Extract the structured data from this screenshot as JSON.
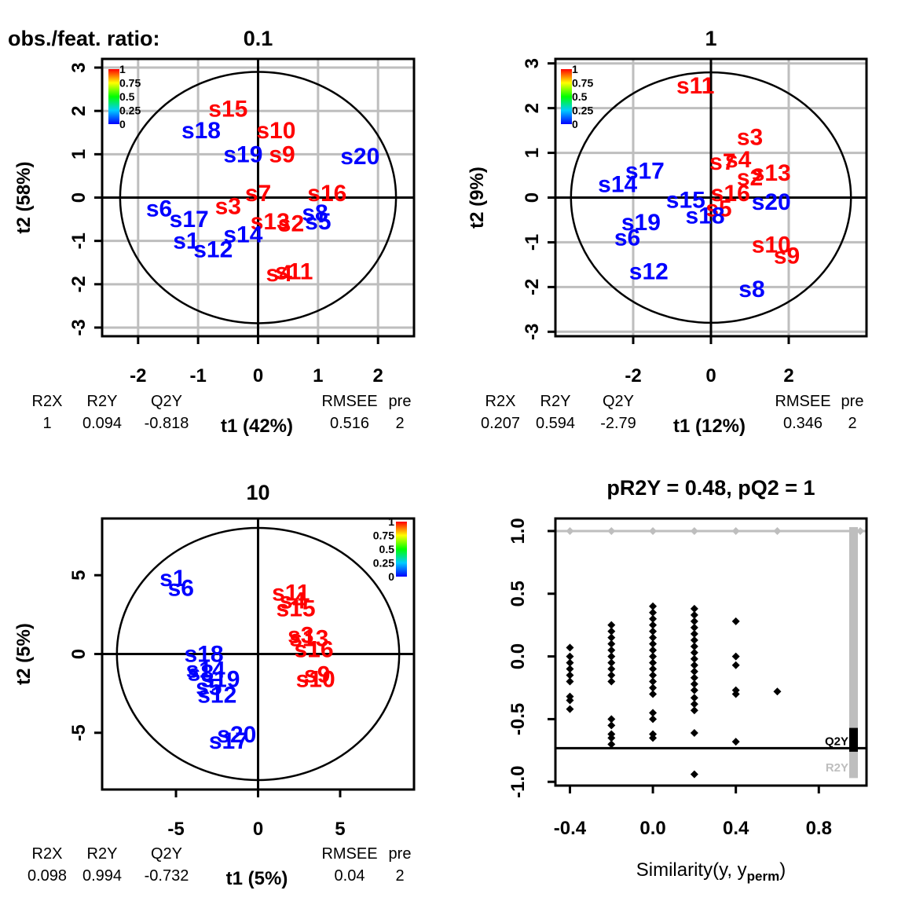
{
  "figure_label": "obs./feat. ratio:",
  "colorbar_ticks": [
    "1",
    "0.75",
    "0.5",
    "0.25",
    "0"
  ],
  "colors": {
    "high": "#ff0000",
    "low": "#0000ff",
    "grid": "#bebebe",
    "axis": "#000000"
  },
  "chart_data": [
    {
      "type": "scatter",
      "title": "0.1",
      "xlabel": "t1 (42%)",
      "ylabel": "t2 (58%)",
      "xlim": [
        -2.6,
        2.6
      ],
      "ylim": [
        -3.2,
        3.2
      ],
      "xticks": [
        "-2",
        "-1",
        "0",
        "1",
        "2"
      ],
      "yticks": [
        "-3",
        "-2",
        "-1",
        "0",
        "1",
        "2",
        "3"
      ],
      "grid": true,
      "ellipse": {
        "rx": 2.3,
        "ry": 2.9
      },
      "stats": {
        "headers": [
          "R2X",
          "R2Y",
          "Q2Y",
          "RMSEE",
          "pre"
        ],
        "values": [
          "1",
          "0.094",
          "-0.818",
          "0.516",
          "2"
        ]
      },
      "points": [
        {
          "label": "s15",
          "x": -0.5,
          "y": 2.05,
          "color": "red"
        },
        {
          "label": "s18",
          "x": -0.95,
          "y": 1.55,
          "color": "blue"
        },
        {
          "label": "s10",
          "x": 0.3,
          "y": 1.55,
          "color": "red"
        },
        {
          "label": "s19",
          "x": -0.25,
          "y": 1.0,
          "color": "blue"
        },
        {
          "label": "s9",
          "x": 0.4,
          "y": 1.0,
          "color": "red"
        },
        {
          "label": "s20",
          "x": 1.7,
          "y": 0.95,
          "color": "blue"
        },
        {
          "label": "s7",
          "x": 0.0,
          "y": 0.1,
          "color": "red"
        },
        {
          "label": "s16",
          "x": 1.15,
          "y": 0.1,
          "color": "red"
        },
        {
          "label": "s3",
          "x": -0.5,
          "y": -0.2,
          "color": "red"
        },
        {
          "label": "s6",
          "x": -1.65,
          "y": -0.25,
          "color": "blue"
        },
        {
          "label": "s17",
          "x": -1.15,
          "y": -0.5,
          "color": "blue"
        },
        {
          "label": "s8",
          "x": 0.95,
          "y": -0.35,
          "color": "blue"
        },
        {
          "label": "s5",
          "x": 1.0,
          "y": -0.55,
          "color": "blue"
        },
        {
          "label": "s13",
          "x": 0.2,
          "y": -0.55,
          "color": "red"
        },
        {
          "label": "s2",
          "x": 0.55,
          "y": -0.6,
          "color": "red"
        },
        {
          "label": "s14",
          "x": -0.25,
          "y": -0.85,
          "color": "blue"
        },
        {
          "label": "s1",
          "x": -1.2,
          "y": -1.0,
          "color": "blue"
        },
        {
          "label": "s12",
          "x": -0.75,
          "y": -1.2,
          "color": "blue"
        },
        {
          "label": "s11",
          "x": 0.6,
          "y": -1.7,
          "color": "red"
        },
        {
          "label": "s4",
          "x": 0.35,
          "y": -1.75,
          "color": "red"
        }
      ]
    },
    {
      "type": "scatter",
      "title": "1",
      "xlabel": "t1 (12%)",
      "ylabel": "t2 (9%)",
      "xlim": [
        -4.0,
        4.0
      ],
      "ylim": [
        -3.1,
        3.1
      ],
      "xticks": [
        "-2",
        "0",
        "2"
      ],
      "yticks": [
        "-3",
        "-2",
        "-1",
        "0",
        "1",
        "2",
        "3"
      ],
      "grid": true,
      "ellipse": {
        "rx": 3.6,
        "ry": 2.8
      },
      "stats": {
        "headers": [
          "R2X",
          "R2Y",
          "Q2Y",
          "RMSEE",
          "pre"
        ],
        "values": [
          "0.207",
          "0.594",
          "-2.79",
          "0.346",
          "2"
        ]
      },
      "points": [
        {
          "label": "s11",
          "x": -0.4,
          "y": 2.5,
          "color": "red"
        },
        {
          "label": "s3",
          "x": 1.0,
          "y": 1.35,
          "color": "red"
        },
        {
          "label": "s7",
          "x": 0.3,
          "y": 0.8,
          "color": "red"
        },
        {
          "label": "s4",
          "x": 0.7,
          "y": 0.85,
          "color": "red"
        },
        {
          "label": "s13",
          "x": 1.55,
          "y": 0.55,
          "color": "red"
        },
        {
          "label": "s2",
          "x": 1.0,
          "y": 0.45,
          "color": "red"
        },
        {
          "label": "s17",
          "x": -1.7,
          "y": 0.6,
          "color": "blue"
        },
        {
          "label": "s14",
          "x": -2.4,
          "y": 0.3,
          "color": "blue"
        },
        {
          "label": "s16",
          "x": 0.5,
          "y": 0.1,
          "color": "red"
        },
        {
          "label": "s20",
          "x": 1.55,
          "y": -0.1,
          "color": "blue"
        },
        {
          "label": "s15",
          "x": -0.65,
          "y": -0.05,
          "color": "blue"
        },
        {
          "label": "s5",
          "x": 0.2,
          "y": -0.25,
          "color": "red"
        },
        {
          "label": "s18",
          "x": -0.15,
          "y": -0.4,
          "color": "blue"
        },
        {
          "label": "s19",
          "x": -1.8,
          "y": -0.55,
          "color": "blue"
        },
        {
          "label": "s6",
          "x": -2.15,
          "y": -0.9,
          "color": "blue"
        },
        {
          "label": "s10",
          "x": 1.55,
          "y": -1.05,
          "color": "red"
        },
        {
          "label": "s9",
          "x": 1.95,
          "y": -1.3,
          "color": "red"
        },
        {
          "label": "s12",
          "x": -1.6,
          "y": -1.65,
          "color": "blue"
        },
        {
          "label": "s8",
          "x": 1.05,
          "y": -2.05,
          "color": "blue"
        }
      ]
    },
    {
      "type": "scatter",
      "title": "10",
      "xlabel": "t1 (5%)",
      "ylabel": "t2 (5%)",
      "xlim": [
        -9.5,
        9.5
      ],
      "ylim": [
        -8.6,
        8.6
      ],
      "xticks": [
        "-5",
        "0",
        "5"
      ],
      "yticks": [
        "-5",
        "0",
        "5"
      ],
      "grid": false,
      "ellipse": {
        "rx": 8.6,
        "ry": 8.0
      },
      "stats": {
        "headers": [
          "R2X",
          "R2Y",
          "Q2Y",
          "RMSEE",
          "pre"
        ],
        "values": [
          "0.098",
          "0.994",
          "-0.732",
          "0.04",
          "2"
        ]
      },
      "points": [
        {
          "label": "s1",
          "x": -5.2,
          "y": 4.8,
          "color": "blue"
        },
        {
          "label": "s6",
          "x": -4.7,
          "y": 4.2,
          "color": "blue"
        },
        {
          "label": "s11",
          "x": 2.0,
          "y": 3.9,
          "color": "red"
        },
        {
          "label": "s4",
          "x": 2.1,
          "y": 3.4,
          "color": "red"
        },
        {
          "label": "s15",
          "x": 2.3,
          "y": 2.9,
          "color": "red"
        },
        {
          "label": "s3",
          "x": 2.6,
          "y": 1.2,
          "color": "red"
        },
        {
          "label": "s13",
          "x": 3.1,
          "y": 1.0,
          "color": "red"
        },
        {
          "label": "s16",
          "x": 3.4,
          "y": 0.3,
          "color": "red"
        },
        {
          "label": "s18",
          "x": -3.3,
          "y": 0.0,
          "color": "blue"
        },
        {
          "label": "s8",
          "x": -3.5,
          "y": -1.2,
          "color": "blue"
        },
        {
          "label": "s14",
          "x": -3.2,
          "y": -1.0,
          "color": "blue"
        },
        {
          "label": "s19",
          "x": -2.3,
          "y": -1.6,
          "color": "blue"
        },
        {
          "label": "s5",
          "x": -3.0,
          "y": -2.1,
          "color": "blue"
        },
        {
          "label": "s12",
          "x": -2.5,
          "y": -2.6,
          "color": "blue"
        },
        {
          "label": "s9",
          "x": 3.6,
          "y": -1.3,
          "color": "red"
        },
        {
          "label": "s10",
          "x": 3.5,
          "y": -1.6,
          "color": "red"
        },
        {
          "label": "s20",
          "x": -1.3,
          "y": -5.1,
          "color": "blue"
        },
        {
          "label": "s17",
          "x": -1.8,
          "y": -5.5,
          "color": "blue"
        }
      ]
    },
    {
      "type": "scatter",
      "title": "pR2Y = 0.48, pQ2 = 1",
      "xlabel": "Similarity(y, y",
      "xlabel_sub": "perm",
      "xlabel_close": ")",
      "xlim": [
        -0.47,
        1.03
      ],
      "ylim": [
        -1.03,
        1.1
      ],
      "xticks": [
        "-0.4",
        "0.0",
        "0.4",
        "0.8"
      ],
      "xtick_values": [
        -0.4,
        0.0,
        0.4,
        0.8
      ],
      "yticks": [
        "-1.0",
        "-0.5",
        "0.0",
        "0.5",
        "1.0"
      ],
      "ytick_values": [
        -1.0,
        -0.5,
        0.0,
        0.5,
        1.0
      ],
      "r2y_line": 1.0,
      "q2y_line": -0.732,
      "legend": [
        "Q2Y",
        "R2Y"
      ],
      "r2y_points": [
        {
          "x": -0.4,
          "y": 1.0
        },
        {
          "x": -0.2,
          "y": 1.0
        },
        {
          "x": 0.0,
          "y": 1.0
        },
        {
          "x": 0.2,
          "y": 1.0
        },
        {
          "x": 0.4,
          "y": 1.0
        },
        {
          "x": 0.6,
          "y": 1.0
        },
        {
          "x": 1.0,
          "y": 1.0
        }
      ],
      "q2y_points": [
        {
          "x": -0.4,
          "y": 0.07
        },
        {
          "x": -0.4,
          "y": 0.0
        },
        {
          "x": -0.4,
          "y": -0.05
        },
        {
          "x": -0.4,
          "y": -0.1
        },
        {
          "x": -0.4,
          "y": -0.15
        },
        {
          "x": -0.4,
          "y": -0.2
        },
        {
          "x": -0.4,
          "y": -0.32
        },
        {
          "x": -0.4,
          "y": -0.35
        },
        {
          "x": -0.4,
          "y": -0.42
        },
        {
          "x": -0.2,
          "y": 0.25
        },
        {
          "x": -0.2,
          "y": 0.2
        },
        {
          "x": -0.2,
          "y": 0.15
        },
        {
          "x": -0.2,
          "y": 0.1
        },
        {
          "x": -0.2,
          "y": 0.05
        },
        {
          "x": -0.2,
          "y": 0.0
        },
        {
          "x": -0.2,
          "y": -0.05
        },
        {
          "x": -0.2,
          "y": -0.1
        },
        {
          "x": -0.2,
          "y": -0.15
        },
        {
          "x": -0.2,
          "y": -0.2
        },
        {
          "x": -0.2,
          "y": -0.5
        },
        {
          "x": -0.2,
          "y": -0.55
        },
        {
          "x": -0.2,
          "y": -0.62
        },
        {
          "x": -0.2,
          "y": -0.65
        },
        {
          "x": -0.2,
          "y": -0.7
        },
        {
          "x": 0.0,
          "y": 0.4
        },
        {
          "x": 0.0,
          "y": 0.35
        },
        {
          "x": 0.0,
          "y": 0.3
        },
        {
          "x": 0.0,
          "y": 0.25
        },
        {
          "x": 0.0,
          "y": 0.2
        },
        {
          "x": 0.0,
          "y": 0.15
        },
        {
          "x": 0.0,
          "y": 0.1
        },
        {
          "x": 0.0,
          "y": 0.05
        },
        {
          "x": 0.0,
          "y": 0.0
        },
        {
          "x": 0.0,
          "y": -0.05
        },
        {
          "x": 0.0,
          "y": -0.1
        },
        {
          "x": 0.0,
          "y": -0.15
        },
        {
          "x": 0.0,
          "y": -0.2
        },
        {
          "x": 0.0,
          "y": -0.25
        },
        {
          "x": 0.0,
          "y": -0.3
        },
        {
          "x": 0.0,
          "y": -0.45
        },
        {
          "x": 0.0,
          "y": -0.5
        },
        {
          "x": 0.0,
          "y": -0.62
        },
        {
          "x": 0.0,
          "y": -0.65
        },
        {
          "x": 0.2,
          "y": 0.38
        },
        {
          "x": 0.2,
          "y": 0.33
        },
        {
          "x": 0.2,
          "y": 0.28
        },
        {
          "x": 0.2,
          "y": 0.23
        },
        {
          "x": 0.2,
          "y": 0.18
        },
        {
          "x": 0.2,
          "y": 0.13
        },
        {
          "x": 0.2,
          "y": 0.08
        },
        {
          "x": 0.2,
          "y": 0.03
        },
        {
          "x": 0.2,
          "y": -0.02
        },
        {
          "x": 0.2,
          "y": -0.07
        },
        {
          "x": 0.2,
          "y": -0.12
        },
        {
          "x": 0.2,
          "y": -0.17
        },
        {
          "x": 0.2,
          "y": -0.22
        },
        {
          "x": 0.2,
          "y": -0.27
        },
        {
          "x": 0.2,
          "y": -0.33
        },
        {
          "x": 0.2,
          "y": -0.38
        },
        {
          "x": 0.2,
          "y": -0.43
        },
        {
          "x": 0.2,
          "y": -0.61
        },
        {
          "x": 0.2,
          "y": -0.94
        },
        {
          "x": 0.4,
          "y": 0.28
        },
        {
          "x": 0.4,
          "y": 0.0
        },
        {
          "x": 0.4,
          "y": -0.07
        },
        {
          "x": 0.4,
          "y": -0.27
        },
        {
          "x": 0.4,
          "y": -0.3
        },
        {
          "x": 0.4,
          "y": -0.68
        },
        {
          "x": 0.6,
          "y": -0.28
        }
      ]
    }
  ]
}
